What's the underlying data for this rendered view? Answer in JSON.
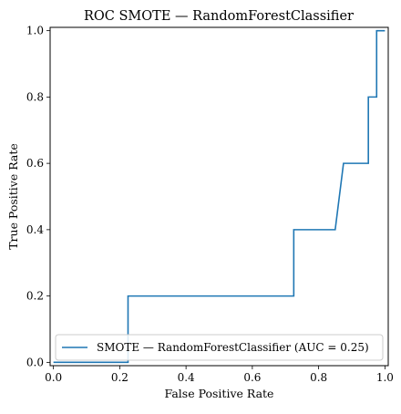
{
  "chart_data": {
    "type": "line",
    "title": "ROC SMOTE — RandomForestClassifier",
    "xlabel": "False Positive Rate",
    "ylabel": "True Positive Rate",
    "xlim": [
      -0.01,
      1.01
    ],
    "ylim": [
      -0.01,
      1.01
    ],
    "xticks": [
      "0.0",
      "0.2",
      "0.4",
      "0.6",
      "0.8",
      "1.0"
    ],
    "yticks": [
      "0.0",
      "0.2",
      "0.4",
      "0.6",
      "0.8",
      "1.0"
    ],
    "grid": false,
    "legend_loc": "lower right",
    "series": [
      {
        "name": "SMOTE — RandomForestClassifier (AUC = 0.25)",
        "color": "#1f77b4",
        "x": [
          0.0,
          0.225,
          0.225,
          0.725,
          0.725,
          0.85,
          0.875,
          0.95,
          0.95,
          0.975,
          0.975,
          1.0
        ],
        "y": [
          0.0,
          0.0,
          0.2,
          0.2,
          0.4,
          0.4,
          0.6,
          0.6,
          0.8,
          0.8,
          1.0,
          1.0
        ]
      }
    ]
  }
}
